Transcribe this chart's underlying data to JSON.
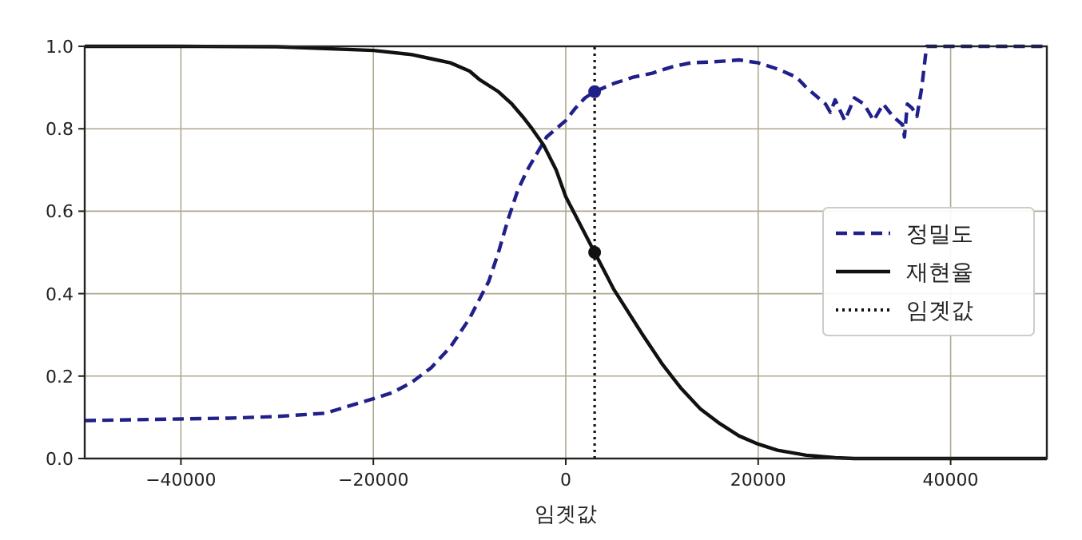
{
  "chart_data": {
    "type": "line",
    "xlabel": "임곗값",
    "xlim": [
      -50000,
      50000
    ],
    "ylim": [
      0,
      1
    ],
    "xticks": [
      {
        "value": -40000,
        "label": "−40000"
      },
      {
        "value": -20000,
        "label": "−20000"
      },
      0,
      20000,
      40000
    ],
    "yticks": [
      {
        "value": 0,
        "label": "0.0"
      },
      {
        "value": 0.2,
        "label": "0.2"
      },
      {
        "value": 0.4,
        "label": "0.4"
      },
      {
        "value": 0.6,
        "label": "0.6"
      },
      {
        "value": 0.8,
        "label": "0.8"
      },
      {
        "value": 1,
        "label": "1.0"
      }
    ],
    "grid": true,
    "legend": "right",
    "series": [
      {
        "name": "정밀도",
        "color": "#20208a",
        "line_style": "dashed",
        "marker": "none",
        "x": [
          -50000,
          -45000,
          -40000,
          -35000,
          -30000,
          -25000,
          -20000,
          -18000,
          -16000,
          -14000,
          -12000,
          -10000,
          -8000,
          -7000,
          -6000,
          -5000,
          -4000,
          -3000,
          -2000,
          -1000,
          0,
          1000,
          2000,
          3000,
          5000,
          7000,
          9000,
          11000,
          13000,
          15000,
          17000,
          18000,
          20000,
          22000,
          24000,
          25000,
          26000,
          27000,
          27500,
          28000,
          29000,
          30000,
          31000,
          32000,
          33000,
          34000,
          35000,
          35200,
          35500,
          36000,
          36500,
          37000,
          37500,
          50000
        ],
        "values": [
          0.092,
          0.094,
          0.096,
          0.098,
          0.102,
          0.11,
          0.145,
          0.16,
          0.185,
          0.22,
          0.27,
          0.34,
          0.43,
          0.5,
          0.58,
          0.65,
          0.7,
          0.74,
          0.78,
          0.8,
          0.82,
          0.85,
          0.875,
          0.89,
          0.91,
          0.925,
          0.935,
          0.95,
          0.96,
          0.962,
          0.965,
          0.967,
          0.96,
          0.945,
          0.925,
          0.9,
          0.88,
          0.86,
          0.84,
          0.87,
          0.82,
          0.875,
          0.86,
          0.82,
          0.86,
          0.83,
          0.81,
          0.78,
          0.86,
          0.85,
          0.83,
          0.9,
          1.0,
          1.0
        ]
      },
      {
        "name": "재현율",
        "color": "#111111",
        "line_style": "solid",
        "marker": "none",
        "x": [
          -50000,
          -40000,
          -30000,
          -20000,
          -16000,
          -14000,
          -12000,
          -10000,
          -9000,
          -7000,
          -5600,
          -4500,
          -3500,
          -2300,
          -1000,
          0,
          1000,
          2000,
          3000,
          5000,
          8000,
          10000,
          12000,
          14000,
          16000,
          18000,
          20000,
          22000,
          25000,
          28000,
          30000,
          50000
        ],
        "values": [
          1.0,
          1.0,
          0.999,
          0.99,
          0.98,
          0.97,
          0.96,
          0.94,
          0.92,
          0.89,
          0.86,
          0.83,
          0.8,
          0.76,
          0.7,
          0.635,
          0.59,
          0.545,
          0.5,
          0.41,
          0.3,
          0.23,
          0.17,
          0.12,
          0.085,
          0.055,
          0.035,
          0.02,
          0.008,
          0.002,
          0,
          0
        ]
      },
      {
        "name": "임곗값",
        "color": "#111111",
        "line_style": "dotted",
        "marker": "none",
        "x": [
          3000,
          3000
        ],
        "values": [
          0,
          1
        ]
      },
      {
        "type": "scatter",
        "color": "#20208a",
        "marker": "circle",
        "x": [
          3000
        ],
        "values": [
          0.89
        ]
      },
      {
        "type": "scatter",
        "color": "#111111",
        "marker": "circle",
        "x": [
          3000
        ],
        "values": [
          0.5
        ]
      }
    ]
  }
}
